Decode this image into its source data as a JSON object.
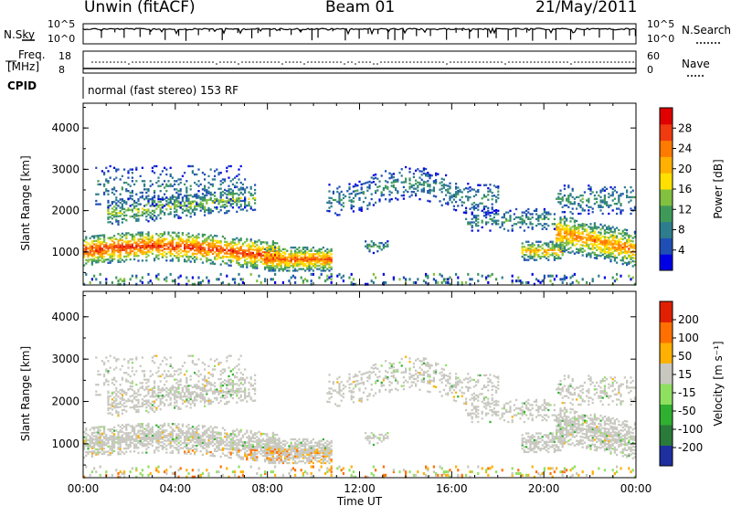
{
  "header": {
    "station": "Unwin (fitACF)",
    "beam": "Beam 01",
    "date": "21/May/2011"
  },
  "panels": {
    "nsky_label": "N.Sky",
    "nsky_ticks": [
      "10^5",
      "10^0"
    ],
    "nsearch_label": "N.Search",
    "nsearch_ticks": [
      "10^5",
      "10^0"
    ],
    "freq_label": "Freq.",
    "freq_unit": "[MHz]",
    "freq_ticks": [
      "18",
      "8"
    ],
    "nave_label": "Nave",
    "nave_ticks": [
      "60",
      "0"
    ],
    "cpid_label": "CPID",
    "cpid_text": "normal (fast stereo) 153 RF"
  },
  "chart_data": [
    {
      "type": "heatmap",
      "name": "power",
      "ylabel": "Slant Range [km]",
      "xlabel": "",
      "y_ticks": [
        "1000",
        "2000",
        "3000",
        "4000"
      ],
      "ylim": [
        200,
        4600
      ],
      "colorbar": {
        "label": "Power [dB]",
        "ticks": [
          "4",
          "8",
          "12",
          "16",
          "20",
          "24",
          "28"
        ],
        "colors": [
          "#0000e6",
          "#1f4fb4",
          "#2e7d8c",
          "#3f9a5a",
          "#82c040",
          "#ffe000",
          "#ffb000",
          "#ff7a00",
          "#f03a10",
          "#e00000"
        ]
      }
    },
    {
      "type": "heatmap",
      "name": "velocity",
      "ylabel": "Slant Range [km]",
      "xlabel": "Time UT",
      "x_ticks": [
        "00:00",
        "04:00",
        "08:00",
        "12:00",
        "16:00",
        "20:00",
        "00:00"
      ],
      "y_ticks": [
        "1000",
        "2000",
        "3000",
        "4000"
      ],
      "ylim": [
        200,
        4600
      ],
      "colorbar": {
        "label": "Velocity [m s⁻¹]",
        "ticks": [
          "200",
          "100",
          "50",
          "15",
          "-15",
          "-50",
          "-100",
          "-200"
        ],
        "colors": [
          "#1e2fa0",
          "#2a7a3a",
          "#30b030",
          "#8fe060",
          "#c8c8c0",
          "#ffb000",
          "#ff7000",
          "#e02000"
        ]
      }
    }
  ]
}
